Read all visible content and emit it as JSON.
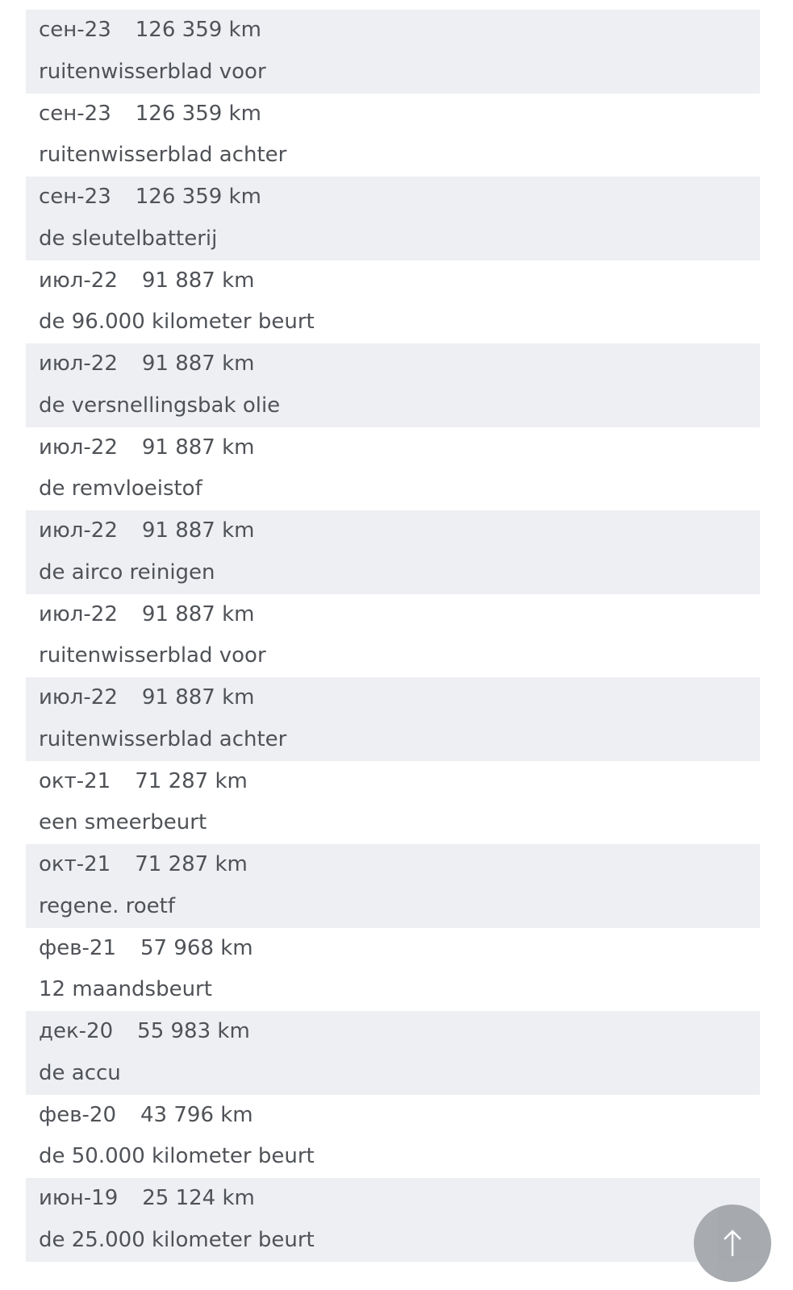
{
  "entries": [
    {
      "date": "сен-23",
      "km": "126 359 km",
      "item": "ruitenwisserblad voor"
    },
    {
      "date": "сен-23",
      "km": "126 359 km",
      "item": "ruitenwisserblad achter"
    },
    {
      "date": "сен-23",
      "km": "126 359 km",
      "item": "de sleutelbatterij"
    },
    {
      "date": "июл-22",
      "km": "91 887 km",
      "item": "de 96.000 kilometer beurt"
    },
    {
      "date": "июл-22",
      "km": "91 887 km",
      "item": "de versnellingsbak olie"
    },
    {
      "date": "июл-22",
      "km": "91 887 km",
      "item": "de remvloeistof"
    },
    {
      "date": "июл-22",
      "km": "91 887 km",
      "item": "de airco reinigen"
    },
    {
      "date": "июл-22",
      "km": "91 887 km",
      "item": "ruitenwisserblad voor"
    },
    {
      "date": "июл-22",
      "km": "91 887 km",
      "item": "ruitenwisserblad achter"
    },
    {
      "date": "окт-21",
      "km": "71 287 km",
      "item": "een smeerbeurt"
    },
    {
      "date": "окт-21",
      "km": "71 287 km",
      "item": "regene. roetf"
    },
    {
      "date": "фев-21",
      "km": "57 968 km",
      "item": "12 maandsbeurt"
    },
    {
      "date": "дек-20",
      "km": "55 983 km",
      "item": "de accu"
    },
    {
      "date": "фев-20",
      "km": "43 796 km",
      "item": "de 50.000 kilometer beurt"
    },
    {
      "date": "июн-19",
      "km": "25 124 km",
      "item": "de 25.000 kilometer beurt"
    }
  ],
  "scroll_top_button": {
    "icon": "arrow-up-icon"
  },
  "colors": {
    "row_shade": "#eeeff2",
    "text": "#4f5257",
    "button": "#a3a6ab"
  }
}
